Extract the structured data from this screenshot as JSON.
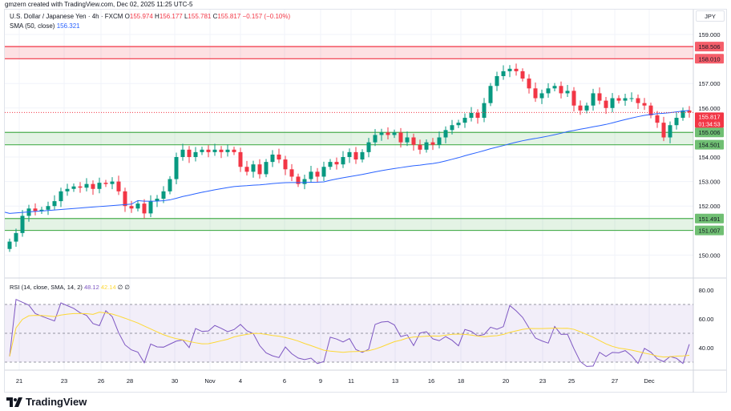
{
  "credit": "gmzern created with TradingView.com, Dec 02, 2025 11:25 UTC-5",
  "legend": {
    "symbol": "U.S. Dollar / Japanese Yen · 4h · FXCM",
    "o_label": "O",
    "o": "155.974",
    "h_label": "H",
    "h": "156.177",
    "l_label": "L",
    "l": "155.781",
    "c_label": "C",
    "c": "155.817",
    "change": "−0.157 (−0.10%)",
    "sma_label": "SMA (50, close)",
    "sma": "156.321"
  },
  "rsi_legend": {
    "label": "RSI (14, close, SMA, 14, 2)",
    "rsi": "48.12",
    "sma": "42.14",
    "extra1": "∅",
    "extra2": "∅"
  },
  "currency": "JPY",
  "price_axis": {
    "ticks": [
      "159.000",
      "157.000",
      "156.000",
      "154.000",
      "153.000",
      "152.000",
      "150.000"
    ],
    "tick_values": [
      159,
      157,
      156,
      154,
      153,
      152,
      150
    ]
  },
  "levels": [
    {
      "from": 158.01,
      "to": 158.506,
      "labels": [
        "158.506",
        "158.010"
      ],
      "color": "#f23645"
    },
    {
      "from": 154.501,
      "to": 155.006,
      "labels": [
        "155.006",
        "154.501"
      ],
      "color": "#4caf50"
    },
    {
      "from": 151.007,
      "to": 151.491,
      "labels": [
        "151.491",
        "151.007"
      ],
      "color": "#4caf50"
    }
  ],
  "last_price": {
    "value": 155.817,
    "label": "155.817",
    "countdown": "01:34:53",
    "color": "#f23645"
  },
  "rsi_axis": {
    "ticks": [
      "80.00",
      "60.00",
      "40.00"
    ],
    "tick_values": [
      80,
      60,
      40
    ],
    "band": [
      30,
      70
    ]
  },
  "time_axis": [
    "21",
    "23",
    "26",
    "28",
    "30",
    "Nov",
    "4",
    "6",
    "9",
    "11",
    "13",
    "16",
    "18",
    "20",
    "23",
    "25",
    "27",
    "Dec"
  ],
  "logo": "TradingView",
  "colors": {
    "up": "#089981",
    "down": "#f23645",
    "sma": "#2962ff",
    "rsi": "#7e57c2",
    "rsi_sma": "#fdd835"
  },
  "chart_data": {
    "type": "candlestick",
    "interval": "4h",
    "ylim": [
      149.7,
      159.4
    ],
    "closes": [
      150.55,
      150.9,
      151.6,
      151.9,
      151.8,
      151.85,
      152.0,
      152.2,
      152.6,
      152.7,
      152.8,
      152.75,
      152.9,
      152.7,
      152.95,
      152.9,
      153.0,
      152.6,
      152.0,
      151.9,
      152.1,
      151.7,
      152.2,
      152.3,
      152.6,
      153.1,
      154.0,
      154.3,
      154.0,
      154.2,
      154.3,
      154.2,
      154.3,
      154.2,
      154.3,
      154.2,
      153.6,
      153.4,
      153.7,
      153.3,
      153.8,
      154.1,
      153.9,
      153.5,
      153.2,
      152.9,
      153.1,
      153.4,
      153.2,
      153.6,
      153.8,
      153.7,
      154.0,
      154.2,
      153.9,
      154.2,
      154.6,
      154.9,
      155.0,
      154.9,
      155.0,
      154.6,
      154.8,
      154.5,
      154.3,
      154.6,
      154.5,
      154.8,
      155.1,
      155.3,
      155.4,
      155.6,
      155.8,
      155.6,
      156.2,
      156.9,
      157.3,
      157.5,
      157.6,
      157.5,
      157.2,
      156.8,
      156.4,
      156.6,
      156.8,
      156.9,
      156.6,
      156.7,
      156.1,
      155.9,
      156.1,
      156.6,
      156.3,
      156.0,
      156.4,
      156.3,
      156.4,
      156.4,
      156.2,
      156.1,
      155.7,
      155.4,
      154.8,
      155.3,
      155.6,
      155.9,
      155.817
    ]
  }
}
